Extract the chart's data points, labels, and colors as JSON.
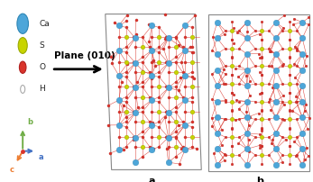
{
  "fig_width": 3.47,
  "fig_height": 2.02,
  "dpi": 100,
  "bg_color": "#ffffff",
  "legend_items": [
    {
      "label": "Ca",
      "color": "#4da6d9",
      "edge": "#2e86b5",
      "r": 0.055,
      "filled": true
    },
    {
      "label": "S",
      "color": "#c8d400",
      "edge": "#9aaa00",
      "r": 0.044,
      "filled": true
    },
    {
      "label": "O",
      "color": "#d9342b",
      "edge": "#b02020",
      "r": 0.033,
      "filled": true
    },
    {
      "label": "H",
      "color": "#ffffff",
      "edge": "#aaaaaa",
      "r": 0.022,
      "filled": false
    }
  ],
  "arrow_text": "Plane (010)",
  "axis_ca": "#4472c4",
  "axis_cb": "#70ad47",
  "axis_cc": "#ed7d31",
  "label_font_size": 6.5,
  "arrow_font_size": 7.5,
  "axis_font_size": 6,
  "ca_color": "#4da6d9",
  "ca_edge": "#2e86b5",
  "s_color": "#c8d400",
  "s_edge": "#9aaa00",
  "o_color": "#d9342b",
  "o_edge": "#b02020",
  "bond_color": "#d9342b",
  "box_color": "#888888",
  "panel_bg": "#ffffff"
}
